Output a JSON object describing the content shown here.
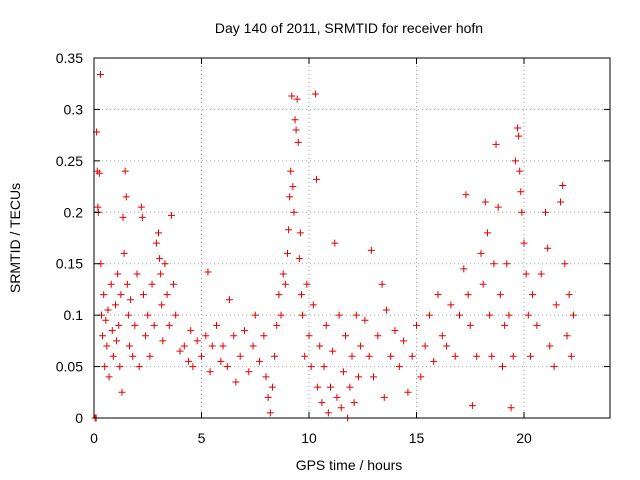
{
  "chart_data": {
    "type": "scatter",
    "title": "Day 140 of 2011, SRMTID for receiver hofn",
    "xlabel": "GPS time / hours",
    "ylabel": "SRMTID / TECUs",
    "xlim": [
      0,
      24
    ],
    "ylim": [
      0,
      0.35
    ],
    "xticks": [
      0,
      5,
      10,
      15,
      20
    ],
    "xtick_labels": [
      "0",
      "5",
      "10",
      "15",
      "20"
    ],
    "yticks": [
      0,
      0.05,
      0.1,
      0.15,
      0.2,
      0.25,
      0.3,
      0.35
    ],
    "ytick_labels": [
      "0",
      "0.05",
      "0.1",
      "0.15",
      "0.2",
      "0.25",
      "0.3",
      "0.35"
    ],
    "grid": true,
    "marker": "plus",
    "series": [
      {
        "name": "SRMTID",
        "color": "#e00000",
        "points": [
          [
            0.05,
            0.0
          ],
          [
            0.1,
            0.0
          ],
          [
            0.12,
            0.278
          ],
          [
            0.15,
            0.24
          ],
          [
            0.18,
            0.205
          ],
          [
            0.2,
            0.2
          ],
          [
            0.25,
            0.238
          ],
          [
            0.3,
            0.334
          ],
          [
            0.32,
            0.15
          ],
          [
            0.35,
            0.1
          ],
          [
            0.4,
            0.08
          ],
          [
            0.45,
            0.12
          ],
          [
            0.5,
            0.05
          ],
          [
            0.55,
            0.095
          ],
          [
            0.6,
            0.07
          ],
          [
            0.65,
            0.105
          ],
          [
            0.7,
            0.04
          ],
          [
            0.8,
            0.13
          ],
          [
            0.85,
            0.085
          ],
          [
            0.9,
            0.06
          ],
          [
            1.0,
            0.11
          ],
          [
            1.05,
            0.075
          ],
          [
            1.1,
            0.14
          ],
          [
            1.15,
            0.09
          ],
          [
            1.2,
            0.05
          ],
          [
            1.25,
            0.12
          ],
          [
            1.3,
            0.025
          ],
          [
            1.35,
            0.195
          ],
          [
            1.4,
            0.16
          ],
          [
            1.45,
            0.24
          ],
          [
            1.5,
            0.215
          ],
          [
            1.55,
            0.13
          ],
          [
            1.6,
            0.1
          ],
          [
            1.65,
            0.07
          ],
          [
            1.7,
            0.115
          ],
          [
            1.8,
            0.06
          ],
          [
            1.9,
            0.09
          ],
          [
            2.0,
            0.14
          ],
          [
            2.1,
            0.05
          ],
          [
            2.2,
            0.205
          ],
          [
            2.25,
            0.195
          ],
          [
            2.3,
            0.12
          ],
          [
            2.4,
            0.08
          ],
          [
            2.5,
            0.1
          ],
          [
            2.6,
            0.06
          ],
          [
            2.7,
            0.13
          ],
          [
            2.8,
            0.09
          ],
          [
            2.9,
            0.17
          ],
          [
            3.0,
            0.18
          ],
          [
            3.05,
            0.155
          ],
          [
            3.1,
            0.14
          ],
          [
            3.15,
            0.11
          ],
          [
            3.2,
            0.075
          ],
          [
            3.3,
            0.15
          ],
          [
            3.4,
            0.12
          ],
          [
            3.5,
            0.09
          ],
          [
            3.6,
            0.197
          ],
          [
            3.7,
            0.13
          ],
          [
            3.8,
            0.1
          ],
          [
            4.0,
            0.065
          ],
          [
            4.2,
            0.07
          ],
          [
            4.4,
            0.055
          ],
          [
            4.5,
            0.085
          ],
          [
            4.6,
            0.05
          ],
          [
            4.8,
            0.075
          ],
          [
            5.0,
            0.06
          ],
          [
            5.2,
            0.08
          ],
          [
            5.3,
            0.142
          ],
          [
            5.4,
            0.045
          ],
          [
            5.5,
            0.07
          ],
          [
            5.7,
            0.09
          ],
          [
            5.9,
            0.055
          ],
          [
            6.0,
            0.07
          ],
          [
            6.2,
            0.05
          ],
          [
            6.3,
            0.115
          ],
          [
            6.5,
            0.08
          ],
          [
            6.6,
            0.035
          ],
          [
            6.8,
            0.06
          ],
          [
            7.0,
            0.085
          ],
          [
            7.2,
            0.045
          ],
          [
            7.4,
            0.07
          ],
          [
            7.5,
            0.1
          ],
          [
            7.7,
            0.055
          ],
          [
            7.9,
            0.08
          ],
          [
            8.0,
            0.04
          ],
          [
            8.1,
            0.02
          ],
          [
            8.2,
            0.005
          ],
          [
            8.3,
            0.03
          ],
          [
            8.4,
            0.06
          ],
          [
            8.5,
            0.09
          ],
          [
            8.6,
            0.12
          ],
          [
            8.7,
            0.1
          ],
          [
            8.8,
            0.14
          ],
          [
            8.9,
            0.13
          ],
          [
            9.0,
            0.16
          ],
          [
            9.05,
            0.183
          ],
          [
            9.1,
            0.215
          ],
          [
            9.15,
            0.24
          ],
          [
            9.2,
            0.313
          ],
          [
            9.25,
            0.225
          ],
          [
            9.3,
            0.2
          ],
          [
            9.35,
            0.29
          ],
          [
            9.4,
            0.28
          ],
          [
            9.45,
            0.31
          ],
          [
            9.5,
            0.268
          ],
          [
            9.55,
            0.155
          ],
          [
            9.6,
            0.18
          ],
          [
            9.65,
            0.12
          ],
          [
            9.7,
            0.1
          ],
          [
            9.8,
            0.06
          ],
          [
            9.9,
            0.13
          ],
          [
            10.0,
            0.08
          ],
          [
            10.1,
            0.05
          ],
          [
            10.2,
            0.11
          ],
          [
            10.3,
            0.315
          ],
          [
            10.35,
            0.232
          ],
          [
            10.4,
            0.03
          ],
          [
            10.5,
            0.07
          ],
          [
            10.6,
            0.015
          ],
          [
            10.7,
            0.05
          ],
          [
            10.8,
            0.09
          ],
          [
            10.9,
            0.005
          ],
          [
            11.0,
            0.03
          ],
          [
            11.1,
            0.065
          ],
          [
            11.2,
            0.17
          ],
          [
            11.3,
            0.02
          ],
          [
            11.4,
            0.1
          ],
          [
            11.5,
            0.01
          ],
          [
            11.6,
            0.045
          ],
          [
            11.7,
            0.08
          ],
          [
            11.8,
            0.0
          ],
          [
            11.9,
            0.03
          ],
          [
            12.0,
            0.06
          ],
          [
            12.1,
            0.015
          ],
          [
            12.2,
            0.1
          ],
          [
            12.3,
            0.04
          ],
          [
            12.4,
            0.07
          ],
          [
            12.6,
            0.095
          ],
          [
            12.8,
            0.06
          ],
          [
            12.9,
            0.163
          ],
          [
            13.0,
            0.04
          ],
          [
            13.2,
            0.08
          ],
          [
            13.4,
            0.13
          ],
          [
            13.5,
            0.02
          ],
          [
            13.6,
            0.105
          ],
          [
            13.8,
            0.06
          ],
          [
            14.0,
            0.085
          ],
          [
            14.2,
            0.05
          ],
          [
            14.4,
            0.075
          ],
          [
            14.6,
            0.025
          ],
          [
            14.8,
            0.06
          ],
          [
            15.0,
            0.09
          ],
          [
            15.2,
            0.04
          ],
          [
            15.4,
            0.07
          ],
          [
            15.6,
            0.1
          ],
          [
            15.8,
            0.055
          ],
          [
            16.0,
            0.12
          ],
          [
            16.2,
            0.08
          ],
          [
            16.4,
            0.07
          ],
          [
            16.6,
            0.11
          ],
          [
            16.8,
            0.06
          ],
          [
            17.0,
            0.1
          ],
          [
            17.2,
            0.145
          ],
          [
            17.3,
            0.217
          ],
          [
            17.4,
            0.12
          ],
          [
            17.5,
            0.09
          ],
          [
            17.6,
            0.012
          ],
          [
            17.8,
            0.06
          ],
          [
            18.0,
            0.16
          ],
          [
            18.1,
            0.13
          ],
          [
            18.2,
            0.21
          ],
          [
            18.3,
            0.18
          ],
          [
            18.4,
            0.1
          ],
          [
            18.5,
            0.06
          ],
          [
            18.6,
            0.15
          ],
          [
            18.7,
            0.266
          ],
          [
            18.8,
            0.205
          ],
          [
            18.9,
            0.12
          ],
          [
            19.0,
            0.05
          ],
          [
            19.1,
            0.09
          ],
          [
            19.2,
            0.15
          ],
          [
            19.3,
            0.1
          ],
          [
            19.4,
            0.01
          ],
          [
            19.5,
            0.06
          ],
          [
            19.6,
            0.25
          ],
          [
            19.7,
            0.282
          ],
          [
            19.75,
            0.274
          ],
          [
            19.8,
            0.24
          ],
          [
            19.85,
            0.22
          ],
          [
            19.9,
            0.2
          ],
          [
            20.0,
            0.17
          ],
          [
            20.1,
            0.14
          ],
          [
            20.2,
            0.1
          ],
          [
            20.3,
            0.06
          ],
          [
            20.4,
            0.12
          ],
          [
            20.6,
            0.09
          ],
          [
            20.8,
            0.14
          ],
          [
            21.0,
            0.2
          ],
          [
            21.1,
            0.165
          ],
          [
            21.2,
            0.07
          ],
          [
            21.4,
            0.05
          ],
          [
            21.5,
            0.11
          ],
          [
            21.7,
            0.21
          ],
          [
            21.8,
            0.226
          ],
          [
            21.9,
            0.15
          ],
          [
            22.0,
            0.08
          ],
          [
            22.1,
            0.12
          ],
          [
            22.2,
            0.06
          ],
          [
            22.3,
            0.1
          ]
        ]
      }
    ]
  }
}
